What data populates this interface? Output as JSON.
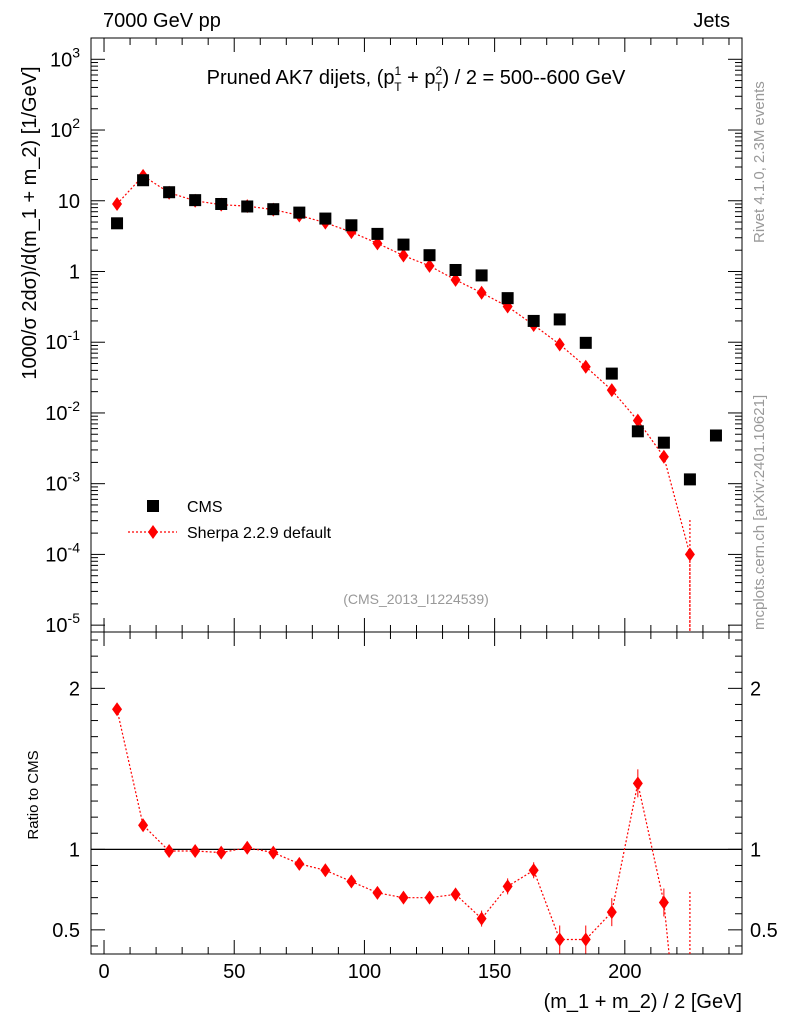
{
  "header": {
    "energy": "7000 GeV pp",
    "process": "Jets",
    "side_rivet": "Rivet 4.1.0,  2.3M events",
    "side_site": "mcplots.cern.ch [arXiv:2401.10621]"
  },
  "chart_data": {
    "type": "scatter",
    "title": "Pruned AK7 dijets, (p_T^1 + p_T^2) / 2 = 500--600 GeV",
    "title_part_a": "Pruned AK7 dijets, (p",
    "title_part_b": " + p",
    "title_part_c": ") / 2 = 500--600 GeV",
    "title_sub": "T",
    "title_sup1": "1",
    "title_sup2": "2",
    "analysis_id": "(CMS_2013_I1224539)",
    "ylabel": "1000/σ  2dσ)/d(m_1 + m_2) [1/GeV]",
    "ratio_ylabel": "Ratio to CMS",
    "xlabel": "(m_1 + m_2) / 2 [GeV]",
    "xlim": [
      -5,
      245
    ],
    "ylim": [
      8e-06,
      2000
    ],
    "ratio_ylim": [
      0.35,
      2.35
    ],
    "x_ticks": [
      0,
      50,
      100,
      150,
      200
    ],
    "x_tick_labels": [
      "0",
      "50",
      "100",
      "150",
      "200"
    ],
    "y_tick_labels": [
      {
        "base": "10",
        "exp": "3",
        "value": 1000
      },
      {
        "base": "10",
        "exp": "2",
        "value": 100
      },
      {
        "base": "10",
        "exp": "",
        "value": 10
      },
      {
        "base": "1",
        "exp": "",
        "value": 1
      },
      {
        "base": "10",
        "exp": "-1",
        "value": 0.1
      },
      {
        "base": "10",
        "exp": "-2",
        "value": 0.01
      },
      {
        "base": "10",
        "exp": "-3",
        "value": 0.001
      },
      {
        "base": "10",
        "exp": "-4",
        "value": 0.0001
      },
      {
        "base": "10",
        "exp": "-5",
        "value": 1e-05
      }
    ],
    "ratio_ticks": [
      0.5,
      1,
      2
    ],
    "ratio_tick_labels": [
      "0.5",
      "1",
      "2"
    ],
    "series": [
      {
        "name": "CMS",
        "color": "#000000",
        "x": [
          5,
          15,
          25,
          35,
          45,
          55,
          65,
          75,
          85,
          95,
          105,
          115,
          125,
          135,
          145,
          155,
          165,
          175,
          185,
          195,
          205,
          215,
          225,
          235
        ],
        "values": [
          4.8,
          19.5,
          13.2,
          10.2,
          9.0,
          8.3,
          7.6,
          6.8,
          5.6,
          4.5,
          3.4,
          2.4,
          1.7,
          1.05,
          0.88,
          0.42,
          0.2,
          0.21,
          0.098,
          0.036,
          0.0055,
          0.0038,
          0.00115,
          0.0048
        ]
      },
      {
        "name": "Sherpa 2.2.9 default",
        "color": "#ff0000",
        "x": [
          5,
          15,
          25,
          35,
          45,
          55,
          65,
          75,
          85,
          95,
          105,
          115,
          125,
          135,
          145,
          155,
          165,
          175,
          185,
          195,
          205,
          215,
          225
        ],
        "values": [
          9.0,
          22.5,
          13.0,
          10.0,
          8.8,
          8.4,
          7.5,
          6.2,
          4.9,
          3.6,
          2.5,
          1.68,
          1.2,
          0.76,
          0.5,
          0.32,
          0.175,
          0.093,
          0.045,
          0.021,
          0.0078,
          0.0024,
          0.0001
        ],
        "ratio": [
          1.87,
          1.15,
          0.99,
          0.99,
          0.98,
          1.01,
          0.98,
          0.91,
          0.87,
          0.8,
          0.73,
          0.7,
          0.7,
          0.72,
          0.57,
          0.77,
          0.87,
          0.44,
          0.44,
          0.61,
          1.41,
          0.67
        ]
      }
    ],
    "legend": [
      "CMS",
      "Sherpa 2.2.9 default"
    ],
    "legend_position": "lower-left"
  }
}
